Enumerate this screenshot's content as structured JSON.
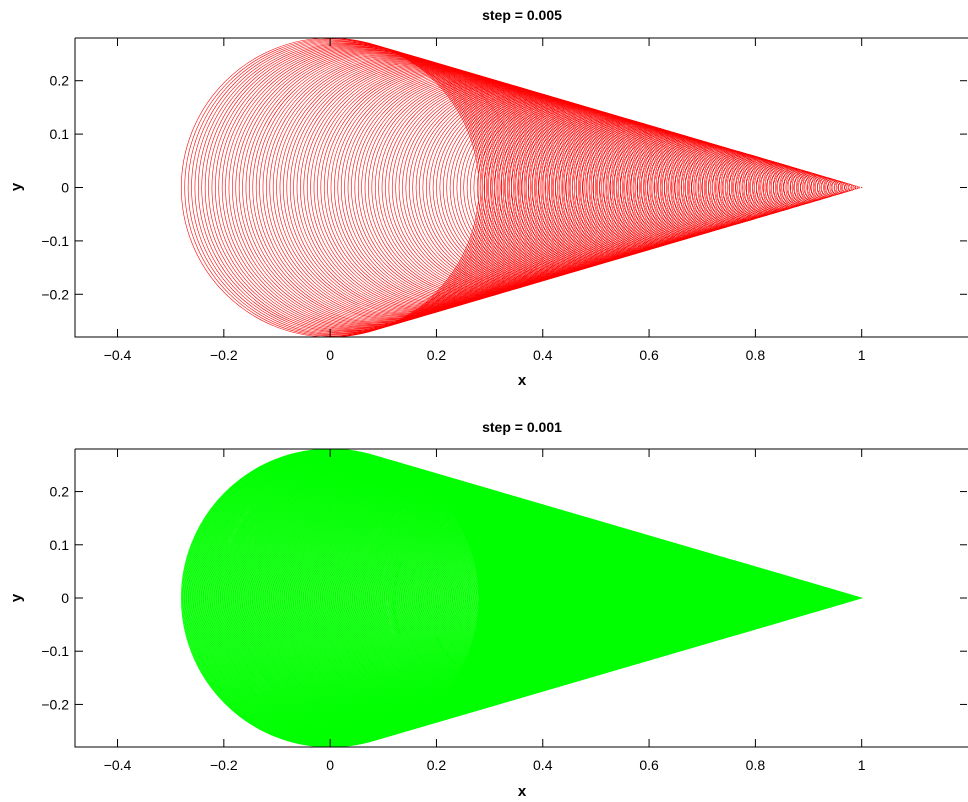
{
  "chart_data": [
    {
      "type": "line",
      "title": "step = 0.005",
      "xlabel": "x",
      "ylabel": "y",
      "xlim": [
        -0.48,
        1.2
      ],
      "ylim": [
        -0.28,
        0.28
      ],
      "xticks": [
        -0.4,
        -0.2,
        0,
        0.2,
        0.4,
        0.6,
        0.8,
        1
      ],
      "xtick_labels": [
        "−0.4",
        "−0.2",
        "0",
        "0.2",
        "0.4",
        "0.6",
        "0.8",
        "1"
      ],
      "yticks": [
        -0.2,
        -0.1,
        0,
        0.1,
        0.2
      ],
      "ytick_labels": [
        "−0.2",
        "−0.1",
        "0",
        "0.1",
        "0.2"
      ],
      "grid": false,
      "color": "#ff0000",
      "series": [
        {
          "step": 0.005,
          "circle_center_x_range": [
            0,
            1
          ],
          "circle_radius_range": [
            0.28,
            0
          ],
          "circle_center_y": 0
        }
      ]
    },
    {
      "type": "line",
      "title": "step = 0.001",
      "xlabel": "x",
      "ylabel": "y",
      "xlim": [
        -0.48,
        1.2
      ],
      "ylim": [
        -0.28,
        0.28
      ],
      "xticks": [
        -0.4,
        -0.2,
        0,
        0.2,
        0.4,
        0.6,
        0.8,
        1
      ],
      "xtick_labels": [
        "−0.4",
        "−0.2",
        "0",
        "0.2",
        "0.4",
        "0.6",
        "0.8",
        "1"
      ],
      "yticks": [
        -0.2,
        -0.1,
        0,
        0.1,
        0.2
      ],
      "ytick_labels": [
        "−0.2",
        "−0.1",
        "0",
        "0.1",
        "0.2"
      ],
      "grid": false,
      "color": "#00ff00",
      "series": [
        {
          "step": 0.001,
          "circle_center_x_range": [
            0,
            1
          ],
          "circle_radius_range": [
            0.28,
            0
          ],
          "circle_center_y": 0
        }
      ]
    }
  ]
}
